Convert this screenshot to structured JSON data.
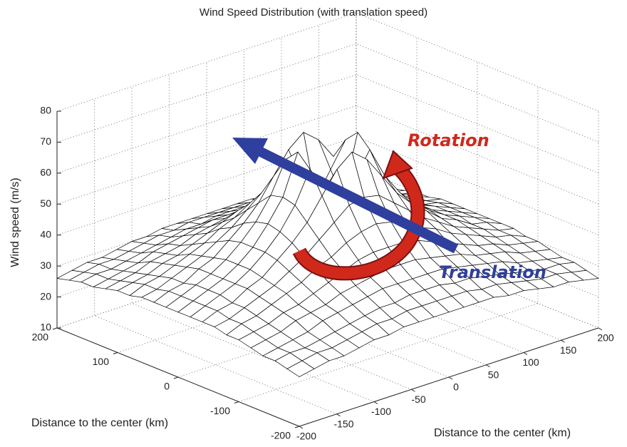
{
  "chart_data": {
    "type": "surface",
    "title": "Wind Speed Distribution (with translation speed)",
    "xlabel": "Distance to the center (km)",
    "ylabel": "Distance to the center (km)",
    "zlabel": "Wind speed (m/s)",
    "annotations": [
      "Rotation",
      "Translation"
    ],
    "x": [
      -200,
      -180,
      -160,
      -140,
      -120,
      -100,
      -80,
      -60,
      -40,
      -20,
      0,
      20,
      40,
      60,
      80,
      100,
      120,
      140,
      160,
      180,
      200
    ],
    "y": [
      -200,
      -180,
      -160,
      -140,
      -120,
      -100,
      -80,
      -60,
      -40,
      -20,
      0,
      20,
      40,
      60,
      80,
      100,
      120,
      140,
      160,
      180,
      200
    ],
    "z": [
      [
        26,
        27,
        28,
        28,
        29,
        30,
        30,
        31,
        31,
        31,
        31,
        31,
        31,
        31,
        30,
        30,
        29,
        28,
        28,
        27,
        26
      ],
      [
        27,
        28,
        29,
        29,
        30,
        31,
        32,
        32,
        33,
        33,
        33,
        33,
        33,
        32,
        32,
        31,
        30,
        29,
        29,
        28,
        27
      ],
      [
        28,
        29,
        29,
        30,
        31,
        32,
        33,
        34,
        34,
        35,
        35,
        35,
        34,
        34,
        33,
        32,
        31,
        30,
        29,
        29,
        28
      ],
      [
        28,
        29,
        30,
        31,
        33,
        34,
        35,
        36,
        37,
        37,
        37,
        37,
        37,
        36,
        35,
        34,
        33,
        31,
        30,
        29,
        28
      ],
      [
        29,
        30,
        31,
        33,
        34,
        35,
        37,
        38,
        39,
        40,
        40,
        40,
        39,
        38,
        37,
        35,
        34,
        33,
        31,
        30,
        29
      ],
      [
        30,
        31,
        32,
        34,
        35,
        37,
        39,
        41,
        43,
        44,
        44,
        44,
        43,
        41,
        39,
        37,
        35,
        34,
        32,
        31,
        30
      ],
      [
        30,
        32,
        33,
        35,
        37,
        39,
        42,
        44,
        47,
        49,
        50,
        49,
        47,
        44,
        42,
        39,
        37,
        35,
        33,
        32,
        30
      ],
      [
        31,
        32,
        34,
        36,
        38,
        41,
        44,
        48,
        52,
        56,
        57,
        56,
        52,
        48,
        44,
        41,
        38,
        36,
        34,
        32,
        31
      ],
      [
        31,
        33,
        34,
        37,
        39,
        43,
        47,
        52,
        59,
        66,
        70,
        66,
        59,
        52,
        47,
        43,
        39,
        37,
        34,
        33,
        31
      ],
      [
        31,
        33,
        35,
        37,
        40,
        44,
        49,
        56,
        66,
        58,
        50,
        58,
        66,
        56,
        49,
        44,
        40,
        37,
        35,
        33,
        31
      ],
      [
        31,
        33,
        35,
        37,
        40,
        44,
        50,
        57,
        70,
        50,
        30,
        50,
        70,
        57,
        50,
        44,
        40,
        37,
        35,
        33,
        31
      ],
      [
        31,
        33,
        35,
        37,
        40,
        44,
        49,
        56,
        66,
        58,
        50,
        58,
        66,
        56,
        49,
        44,
        40,
        37,
        35,
        33,
        31
      ],
      [
        31,
        33,
        34,
        37,
        39,
        43,
        47,
        52,
        59,
        66,
        70,
        66,
        59,
        52,
        47,
        43,
        39,
        37,
        34,
        33,
        31
      ],
      [
        31,
        32,
        34,
        36,
        38,
        41,
        44,
        48,
        52,
        56,
        57,
        56,
        52,
        48,
        44,
        41,
        38,
        36,
        34,
        32,
        31
      ],
      [
        30,
        32,
        33,
        35,
        37,
        39,
        42,
        44,
        47,
        49,
        50,
        49,
        47,
        44,
        42,
        39,
        37,
        35,
        33,
        32,
        30
      ],
      [
        30,
        31,
        32,
        34,
        35,
        37,
        39,
        41,
        43,
        44,
        44,
        44,
        43,
        41,
        39,
        37,
        35,
        34,
        32,
        31,
        30
      ],
      [
        29,
        30,
        31,
        33,
        34,
        35,
        37,
        38,
        39,
        40,
        40,
        40,
        39,
        38,
        37,
        35,
        34,
        33,
        31,
        30,
        29
      ],
      [
        28,
        29,
        30,
        31,
        33,
        34,
        35,
        36,
        37,
        37,
        37,
        37,
        37,
        36,
        35,
        34,
        33,
        31,
        30,
        29,
        28
      ],
      [
        28,
        29,
        29,
        30,
        31,
        32,
        33,
        34,
        34,
        35,
        35,
        35,
        34,
        34,
        33,
        32,
        31,
        30,
        29,
        29,
        28
      ],
      [
        27,
        28,
        29,
        29,
        30,
        31,
        32,
        32,
        33,
        33,
        33,
        33,
        33,
        32,
        32,
        31,
        30,
        29,
        29,
        28,
        27
      ],
      [
        26,
        27,
        28,
        28,
        29,
        30,
        30,
        31,
        31,
        31,
        31,
        31,
        31,
        31,
        30,
        30,
        29,
        28,
        28,
        27,
        26
      ]
    ],
    "xlim": [
      -200,
      200
    ],
    "ylim": [
      -200,
      200
    ],
    "zlim": [
      10,
      80
    ],
    "xticks": [
      -200,
      -150,
      -100,
      -50,
      0,
      50,
      100,
      150,
      200
    ],
    "yticks": [
      -200,
      -100,
      0,
      100,
      200
    ],
    "zticks": [
      10,
      20,
      30,
      40,
      50,
      60,
      70,
      80
    ],
    "grid": true,
    "color": "#000000"
  }
}
